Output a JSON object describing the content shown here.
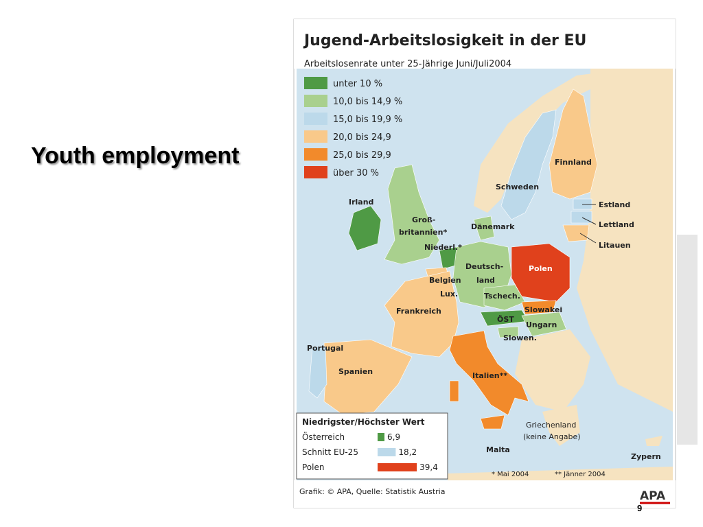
{
  "slide": {
    "title": "Youth employment",
    "page_number": "9"
  },
  "map": {
    "title": "Jugend-Arbeitslosigkeit in der EU",
    "subtitle": "Arbeitslosenrate unter 25-Jährige Juni/Juli2004",
    "legend": [
      {
        "label": "unter 10 %",
        "color": "#4f9a45"
      },
      {
        "label": "10,0 bis 14,9 %",
        "color": "#a9d08e"
      },
      {
        "label": "15,0 bis 19,9 %",
        "color": "#bcd9ea"
      },
      {
        "label": "20,0 bis 24,9",
        "color": "#f9c98a"
      },
      {
        "label": "25,0 bis 29,9",
        "color": "#f28a2b"
      },
      {
        "label": "über 30 %",
        "color": "#e0411c"
      }
    ],
    "labels": [
      "Finnland",
      "Schweden",
      "Estland",
      "Lettland",
      "Litauen",
      "Irland",
      "Groß-",
      "britannien*",
      "Dänemark",
      "Niederl.*",
      "Deutsch-",
      "land",
      "Polen",
      "Belgien",
      "Lux.",
      "Tschech.",
      "Slowakei",
      "Frankreich",
      "ÖST",
      "Ungarn",
      "Slowen.",
      "Portugal",
      "Spanien",
      "Italien**",
      "Griechenland",
      "(keine Angabe)",
      "Malta",
      "Zypern"
    ],
    "extremes": {
      "title": "Niedrigster/Höchster Wert",
      "rows": [
        {
          "name": "Österreich",
          "value": {
            "value": 6.9,
            "label": "6,9"
          },
          "color": "#4f9a45"
        },
        {
          "name": "Schnitt EU-25",
          "value": {
            "value": 18.2,
            "label": "18,2"
          },
          "color": "#bcd9ea"
        },
        {
          "name": "Polen",
          "value": {
            "value": 39.4,
            "label": "39,4"
          },
          "color": "#e0411c"
        }
      ]
    },
    "footnotes": [
      "* Mai 2004",
      "** Jänner 2004"
    ],
    "source": "Grafik: © APA, Quelle: Statistik Austria",
    "logo": "APA"
  }
}
